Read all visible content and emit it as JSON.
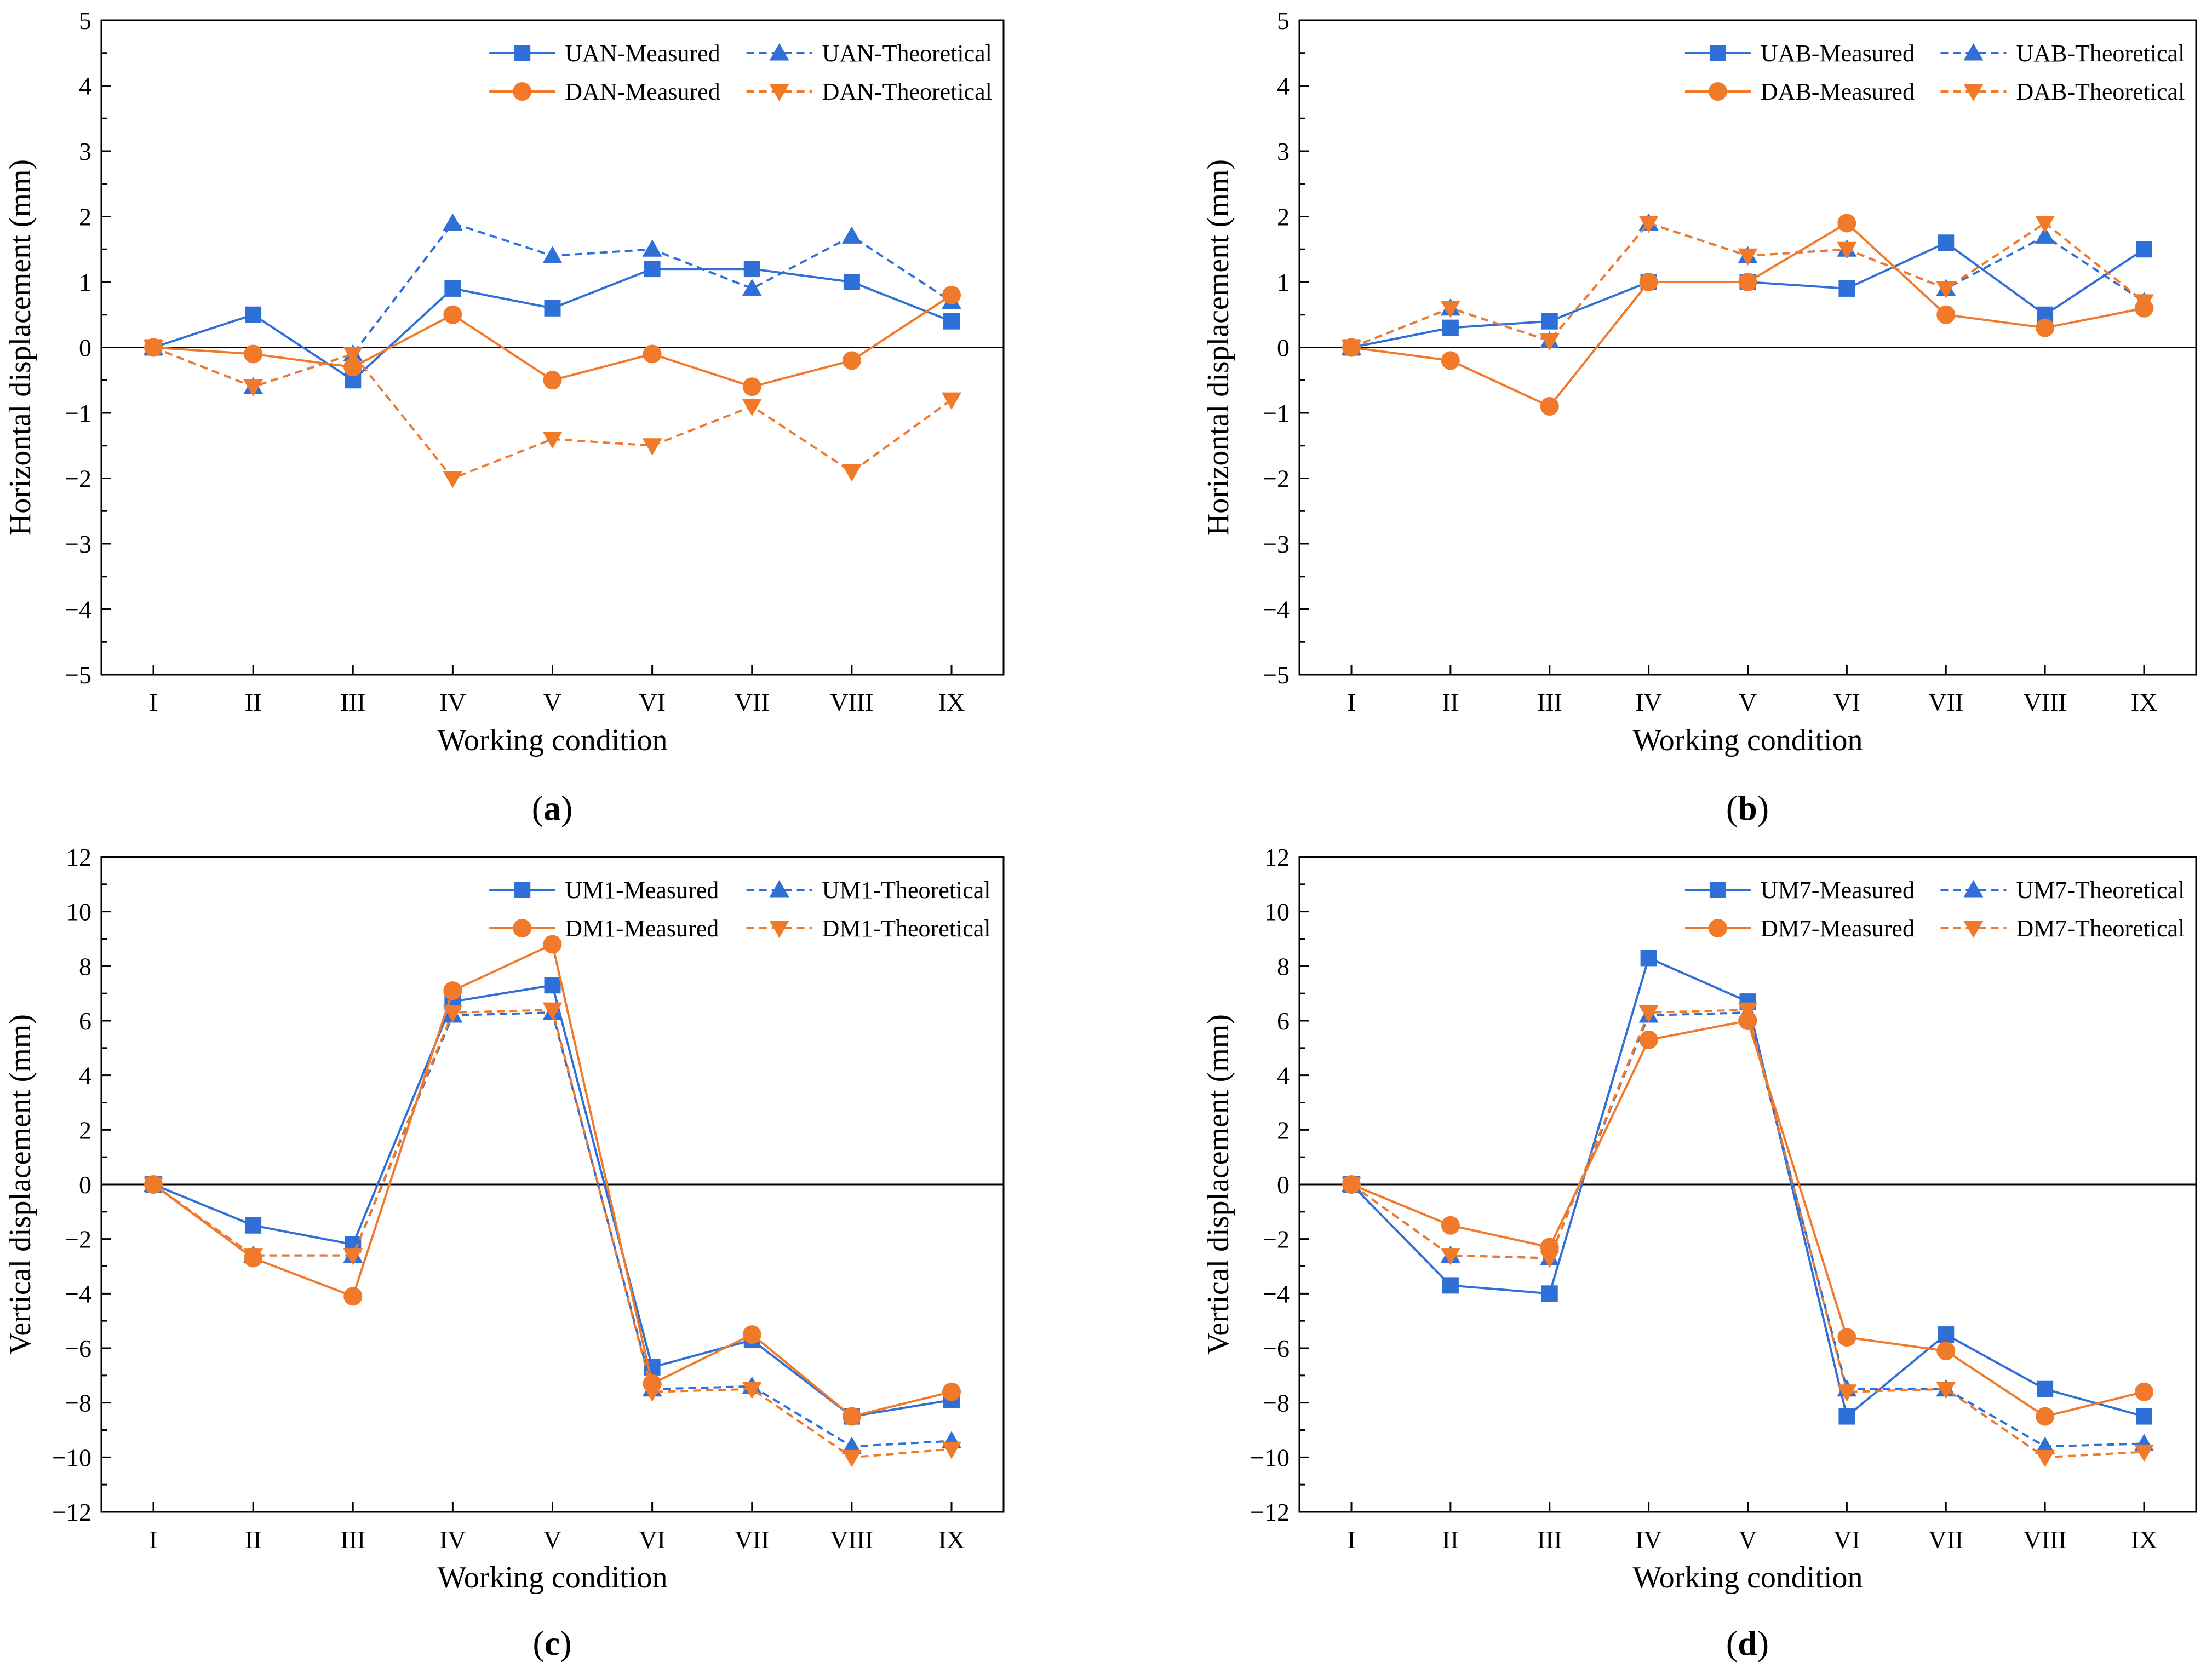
{
  "colors": {
    "blue": "#2f6fd8",
    "orange": "#f07a2a",
    "axis": "#000000"
  },
  "chart_data": [
    {
      "id": "a",
      "type": "line",
      "panel_label": "a",
      "xlabel": "Working condition",
      "ylabel": "Horizontal displacement (mm)",
      "categories": [
        "I",
        "II",
        "III",
        "IV",
        "V",
        "VI",
        "VII",
        "VIII",
        "IX"
      ],
      "ylim": [
        -5,
        5
      ],
      "yticks": [
        -5,
        -4,
        -3,
        -2,
        -1,
        0,
        1,
        2,
        3,
        4,
        5
      ],
      "zero_line": true,
      "legend_position": "top-right",
      "series": [
        {
          "name": "UAN-Measured",
          "color": "blue",
          "style": "solid",
          "marker": "square",
          "values": [
            0,
            0.5,
            -0.5,
            0.9,
            0.6,
            1.2,
            1.2,
            1.0,
            0.4
          ]
        },
        {
          "name": "UAN-Theoretical",
          "color": "blue",
          "style": "dashed",
          "marker": "triangle-up",
          "values": [
            0,
            -0.6,
            -0.1,
            1.9,
            1.4,
            1.5,
            0.9,
            1.7,
            0.7
          ]
        },
        {
          "name": "DAN-Measured",
          "color": "orange",
          "style": "solid",
          "marker": "circle",
          "values": [
            0,
            -0.1,
            -0.3,
            0.5,
            -0.5,
            -0.1,
            -0.6,
            -0.2,
            0.8
          ]
        },
        {
          "name": "DAN-Theoretical",
          "color": "orange",
          "style": "dashed",
          "marker": "triangle-down",
          "values": [
            0,
            -0.6,
            -0.1,
            -2.0,
            -1.4,
            -1.5,
            -0.9,
            -1.9,
            -0.8
          ]
        }
      ]
    },
    {
      "id": "b",
      "type": "line",
      "panel_label": "b",
      "xlabel": "Working condition",
      "ylabel": "Horizontal displacement (mm)",
      "categories": [
        "I",
        "II",
        "III",
        "IV",
        "V",
        "VI",
        "VII",
        "VIII",
        "IX"
      ],
      "ylim": [
        -5,
        5
      ],
      "yticks": [
        -5,
        -4,
        -3,
        -2,
        -1,
        0,
        1,
        2,
        3,
        4,
        5
      ],
      "zero_line": true,
      "legend_position": "top-right",
      "series": [
        {
          "name": "UAB-Measured",
          "color": "blue",
          "style": "solid",
          "marker": "square",
          "values": [
            0,
            0.3,
            0.4,
            1.0,
            1.0,
            0.9,
            1.6,
            0.5,
            1.5
          ]
        },
        {
          "name": "UAB-Theoretical",
          "color": "blue",
          "style": "dashed",
          "marker": "triangle-up",
          "values": [
            0,
            0.6,
            0.1,
            1.9,
            1.4,
            1.5,
            0.9,
            1.7,
            0.7
          ]
        },
        {
          "name": "DAB-Measured",
          "color": "orange",
          "style": "solid",
          "marker": "circle",
          "values": [
            0,
            -0.2,
            -0.9,
            1.0,
            1.0,
            1.9,
            0.5,
            0.3,
            0.6
          ]
        },
        {
          "name": "DAB-Theoretical",
          "color": "orange",
          "style": "dashed",
          "marker": "triangle-down",
          "values": [
            0,
            0.6,
            0.1,
            1.9,
            1.4,
            1.5,
            0.9,
            1.9,
            0.7
          ]
        }
      ]
    },
    {
      "id": "c",
      "type": "line",
      "panel_label": "c",
      "xlabel": "Working condition",
      "ylabel": "Vertical displacement (mm)",
      "categories": [
        "I",
        "II",
        "III",
        "IV",
        "V",
        "VI",
        "VII",
        "VIII",
        "IX"
      ],
      "ylim": [
        -12,
        12
      ],
      "yticks": [
        -12,
        -10,
        -8,
        -6,
        -4,
        -2,
        0,
        2,
        4,
        6,
        8,
        10,
        12
      ],
      "zero_line": true,
      "legend_position": "top-right",
      "series": [
        {
          "name": "UM1-Measured",
          "color": "blue",
          "style": "solid",
          "marker": "square",
          "values": [
            0,
            -1.5,
            -2.2,
            6.7,
            7.3,
            -6.7,
            -5.7,
            -8.5,
            -7.9
          ]
        },
        {
          "name": "UM1-Theoretical",
          "color": "blue",
          "style": "dashed",
          "marker": "triangle-up",
          "values": [
            0,
            -2.6,
            -2.6,
            6.2,
            6.3,
            -7.5,
            -7.4,
            -9.6,
            -9.4
          ]
        },
        {
          "name": "DM1-Measured",
          "color": "orange",
          "style": "solid",
          "marker": "circle",
          "values": [
            0,
            -2.7,
            -4.1,
            7.1,
            8.8,
            -7.3,
            -5.5,
            -8.5,
            -7.6
          ]
        },
        {
          "name": "DM1-Theoretical",
          "color": "orange",
          "style": "dashed",
          "marker": "triangle-down",
          "values": [
            0,
            -2.6,
            -2.6,
            6.3,
            6.4,
            -7.6,
            -7.5,
            -10.0,
            -9.7
          ]
        }
      ]
    },
    {
      "id": "d",
      "type": "line",
      "panel_label": "d",
      "xlabel": "Working condition",
      "ylabel": "Vertical displacement (mm)",
      "categories": [
        "I",
        "II",
        "III",
        "IV",
        "V",
        "VI",
        "VII",
        "VIII",
        "IX"
      ],
      "ylim": [
        -12,
        12
      ],
      "yticks": [
        -12,
        -10,
        -8,
        -6,
        -4,
        -2,
        0,
        2,
        4,
        6,
        8,
        10,
        12
      ],
      "zero_line": true,
      "legend_position": "top-right",
      "series": [
        {
          "name": "UM7-Measured",
          "color": "blue",
          "style": "solid",
          "marker": "square",
          "values": [
            0,
            -3.7,
            -4.0,
            8.3,
            6.7,
            -8.5,
            -5.5,
            -7.5,
            -8.5
          ]
        },
        {
          "name": "UM7-Theoretical",
          "color": "blue",
          "style": "dashed",
          "marker": "triangle-up",
          "values": [
            0,
            -2.6,
            -2.7,
            6.2,
            6.3,
            -7.5,
            -7.5,
            -9.6,
            -9.5
          ]
        },
        {
          "name": "DM7-Measured",
          "color": "orange",
          "style": "solid",
          "marker": "circle",
          "values": [
            0,
            -1.5,
            -2.3,
            5.3,
            6.0,
            -5.6,
            -6.1,
            -8.5,
            -7.6
          ]
        },
        {
          "name": "DM7-Theoretical",
          "color": "orange",
          "style": "dashed",
          "marker": "triangle-down",
          "values": [
            0,
            -2.6,
            -2.7,
            6.3,
            6.4,
            -7.6,
            -7.5,
            -10.0,
            -9.8
          ]
        }
      ]
    }
  ]
}
